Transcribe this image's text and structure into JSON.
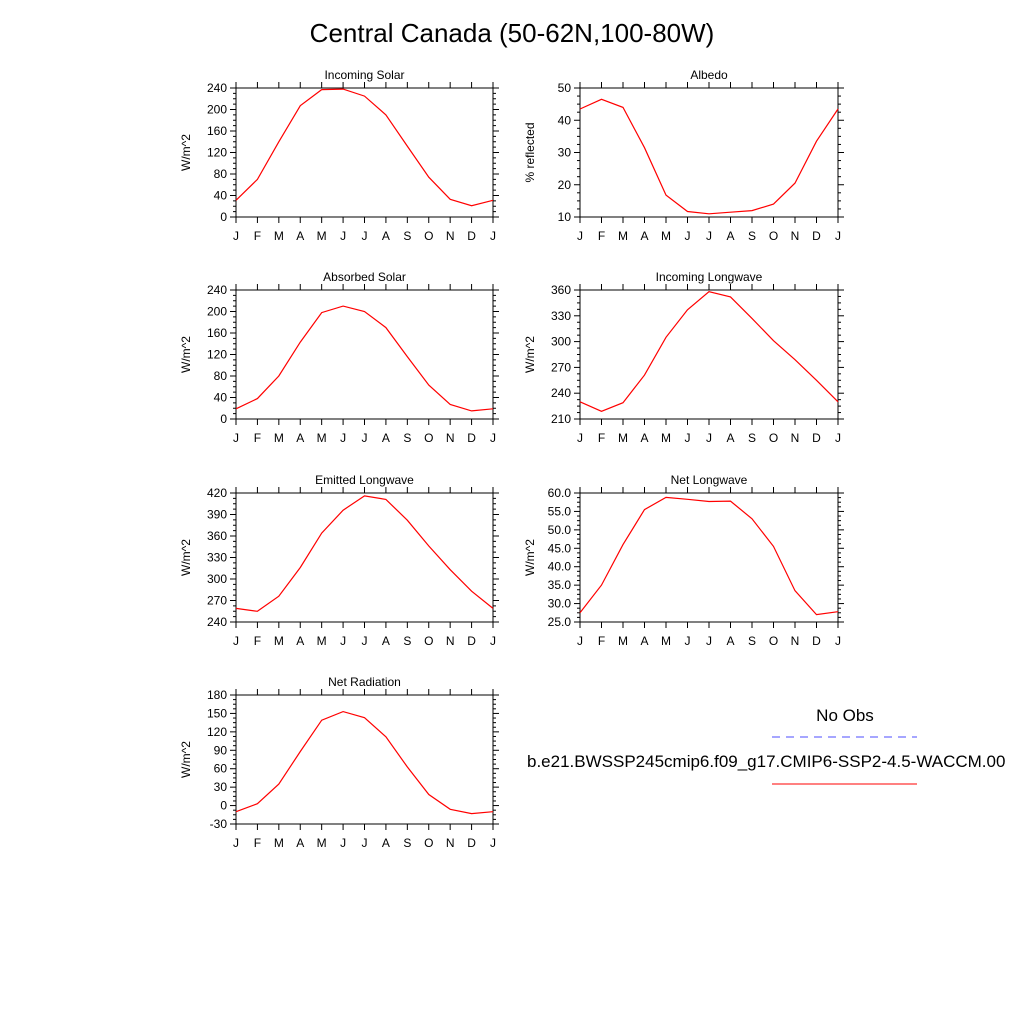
{
  "title": "Central Canada (50-62N,100-80W)",
  "legend": {
    "obs_label": "No Obs",
    "case_label": "b.e21.BWSSP245cmip6.f09_g17.CMIP6-SSP2-4.5-WACCM.00",
    "obs_color": "#4d4dff",
    "case_color": "#ff0000"
  },
  "chart_data": [
    {
      "type": "line",
      "title": "Incoming Solar",
      "ylabel": "W/m^2",
      "categories": [
        "J",
        "F",
        "M",
        "A",
        "M",
        "J",
        "J",
        "A",
        "S",
        "O",
        "N",
        "D",
        "J"
      ],
      "ylim": [
        0,
        240
      ],
      "yticks": [
        "0",
        "40",
        "80",
        "120",
        "160",
        "200",
        "240"
      ],
      "series": [
        {
          "values": [
            31,
            70,
            140,
            207,
            237,
            238,
            225,
            190,
            132,
            74,
            33,
            21,
            31
          ]
        }
      ]
    },
    {
      "type": "line",
      "title": "Albedo",
      "ylabel": "% reflected",
      "categories": [
        "J",
        "F",
        "M",
        "A",
        "M",
        "J",
        "J",
        "A",
        "S",
        "O",
        "N",
        "D",
        "J"
      ],
      "ylim": [
        10,
        50
      ],
      "yticks": [
        "10",
        "20",
        "30",
        "40",
        "50"
      ],
      "series": [
        {
          "values": [
            43.5,
            46.5,
            44,
            31.5,
            16.8,
            11.7,
            11,
            11.5,
            12,
            14,
            20.5,
            33.5,
            43.5
          ]
        }
      ]
    },
    {
      "type": "line",
      "title": "Absorbed Solar",
      "ylabel": "W/m^2",
      "categories": [
        "J",
        "F",
        "M",
        "A",
        "M",
        "J",
        "J",
        "A",
        "S",
        "O",
        "N",
        "D",
        "J"
      ],
      "ylim": [
        0,
        240
      ],
      "yticks": [
        "0",
        "40",
        "80",
        "120",
        "160",
        "200",
        "240"
      ],
      "series": [
        {
          "values": [
            19,
            38,
            80,
            143,
            198,
            210,
            200,
            170,
            116,
            63,
            27,
            15,
            19
          ]
        }
      ]
    },
    {
      "type": "line",
      "title": "Incoming Longwave",
      "ylabel": "W/m^2",
      "categories": [
        "J",
        "F",
        "M",
        "A",
        "M",
        "J",
        "J",
        "A",
        "S",
        "O",
        "N",
        "D",
        "J"
      ],
      "ylim": [
        210,
        360
      ],
      "yticks": [
        "210",
        "240",
        "270",
        "300",
        "330",
        "360"
      ],
      "series": [
        {
          "values": [
            230,
            219,
            229,
            261,
            305,
            337,
            358,
            352,
            327,
            301,
            279,
            255,
            230
          ]
        }
      ]
    },
    {
      "type": "line",
      "title": "Emitted Longwave",
      "ylabel": "W/m^2",
      "categories": [
        "J",
        "F",
        "M",
        "A",
        "M",
        "J",
        "J",
        "A",
        "S",
        "O",
        "N",
        "D",
        "J"
      ],
      "ylim": [
        240,
        420
      ],
      "yticks": [
        "240",
        "270",
        "300",
        "330",
        "360",
        "390",
        "420"
      ],
      "series": [
        {
          "values": [
            259,
            255,
            276,
            316,
            364,
            396,
            416,
            411,
            382,
            346,
            313,
            283,
            259
          ]
        }
      ]
    },
    {
      "type": "line",
      "title": "Net Longwave",
      "ylabel": "W/m^2",
      "categories": [
        "J",
        "F",
        "M",
        "A",
        "M",
        "J",
        "J",
        "A",
        "S",
        "O",
        "N",
        "D",
        "J"
      ],
      "ylim": [
        25,
        60
      ],
      "yticks": [
        "25.0",
        "30.0",
        "35.0",
        "40.0",
        "45.0",
        "50.0",
        "55.0",
        "60.0"
      ],
      "series": [
        {
          "values": [
            27.5,
            35,
            46,
            55.5,
            58.8,
            58.3,
            57.7,
            57.8,
            53,
            45.5,
            33.5,
            27,
            27.8
          ]
        }
      ]
    },
    {
      "type": "line",
      "title": "Net Radiation",
      "ylabel": "W/m^2",
      "categories": [
        "J",
        "F",
        "M",
        "A",
        "M",
        "J",
        "J",
        "A",
        "S",
        "O",
        "N",
        "D",
        "J"
      ],
      "ylim": [
        -30,
        180
      ],
      "yticks": [
        "-30",
        "0",
        "30",
        "60",
        "90",
        "120",
        "150",
        "180"
      ],
      "series": [
        {
          "values": [
            -10,
            3,
            35,
            88,
            139,
            153,
            143,
            112,
            63,
            18,
            -6,
            -13,
            -10
          ]
        }
      ]
    }
  ]
}
